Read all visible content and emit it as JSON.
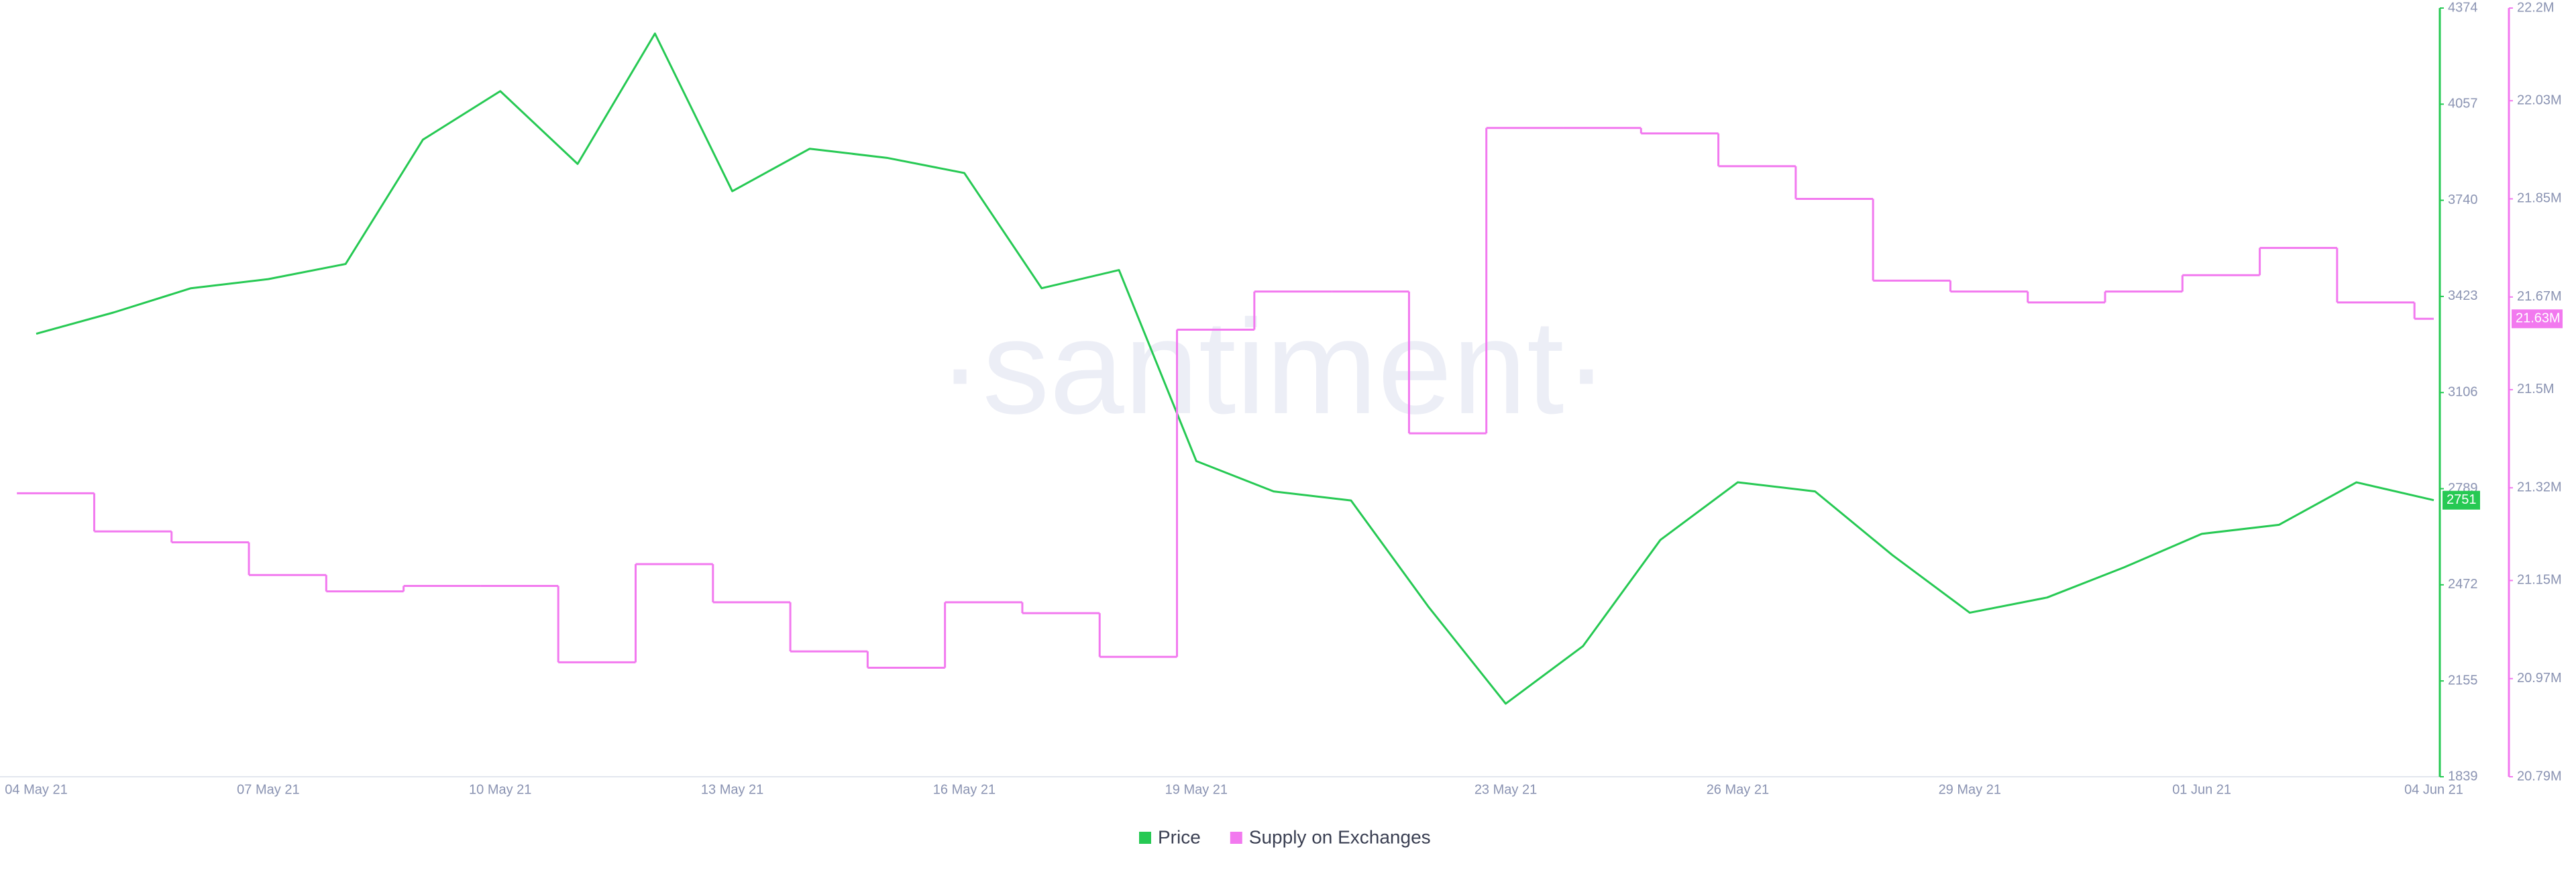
{
  "chart_data": {
    "type": "line",
    "watermark": "·santiment·",
    "x": [
      "04 May 21",
      "05 May 21",
      "06 May 21",
      "07 May 21",
      "08 May 21",
      "09 May 21",
      "10 May 21",
      "11 May 21",
      "12 May 21",
      "13 May 21",
      "14 May 21",
      "15 May 21",
      "16 May 21",
      "17 May 21",
      "18 May 21",
      "19 May 21",
      "20 May 21",
      "21 May 21",
      "22 May 21",
      "23 May 21",
      "24 May 21",
      "25 May 21",
      "26 May 21",
      "27 May 21",
      "28 May 21",
      "29 May 21",
      "30 May 21",
      "31 May 21",
      "01 Jun 21",
      "02 Jun 21",
      "03 Jun 21",
      "04 Jun 21"
    ],
    "xticks": [
      "04 May 21",
      "07 May 21",
      "10 May 21",
      "13 May 21",
      "16 May 21",
      "19 May 21",
      "23 May 21",
      "26 May 21",
      "29 May 21",
      "01 Jun 21",
      "04 Jun 21"
    ],
    "series": [
      {
        "name": "Price",
        "color": "#26c953",
        "style": "line",
        "values": [
          3300,
          3370,
          3450,
          3480,
          3530,
          3940,
          4100,
          3860,
          4290,
          3770,
          3910,
          3880,
          3830,
          3450,
          3510,
          2880,
          2780,
          2750,
          2400,
          2080,
          2270,
          2620,
          2810,
          2780,
          2570,
          2380,
          2430,
          2530,
          2640,
          2670,
          2810,
          2751
        ]
      },
      {
        "name": "Supply on Exchanges",
        "color": "#f279ef",
        "style": "step",
        "axis": "y2",
        "values": [
          21310000,
          21240000,
          21220000,
          21160000,
          21130000,
          21140000,
          21140000,
          21000000,
          21180000,
          21110000,
          21020000,
          20990000,
          21110000,
          21090000,
          21010000,
          21610000,
          21680000,
          21680000,
          21420000,
          21980000,
          21980000,
          21970000,
          21910000,
          21850000,
          21700000,
          21680000,
          21660000,
          21680000,
          21710000,
          21760000,
          21660000,
          21630000
        ],
        "value_labels": [
          null,
          null,
          null,
          null,
          null,
          null,
          null,
          null,
          null,
          null,
          null,
          null,
          null,
          null,
          null,
          null,
          null,
          null,
          null,
          null,
          null,
          null,
          null,
          null,
          null,
          null,
          null,
          null,
          null,
          null,
          null,
          "21.63M"
        ]
      }
    ],
    "ylim": [
      1839,
      4374
    ],
    "yticks": [
      1839,
      2155,
      2472,
      2789,
      3106,
      3423,
      3740,
      4057,
      4374
    ],
    "y2lim": [
      20790000,
      22200000
    ],
    "y2ticks": [
      {
        "value": 20790000,
        "label": "20.79M"
      },
      {
        "value": 20970000,
        "label": "20.97M"
      },
      {
        "value": 21150000,
        "label": "21.15M"
      },
      {
        "value": 21320000,
        "label": "21.32M"
      },
      {
        "value": 21500000,
        "label": "21.5M"
      },
      {
        "value": 21670000,
        "label": "21.67M"
      },
      {
        "value": 21850000,
        "label": "21.85M"
      },
      {
        "value": 22030000,
        "label": "22.03M"
      },
      {
        "value": 22200000,
        "label": "22.2M"
      }
    ],
    "legend": "bottom"
  }
}
